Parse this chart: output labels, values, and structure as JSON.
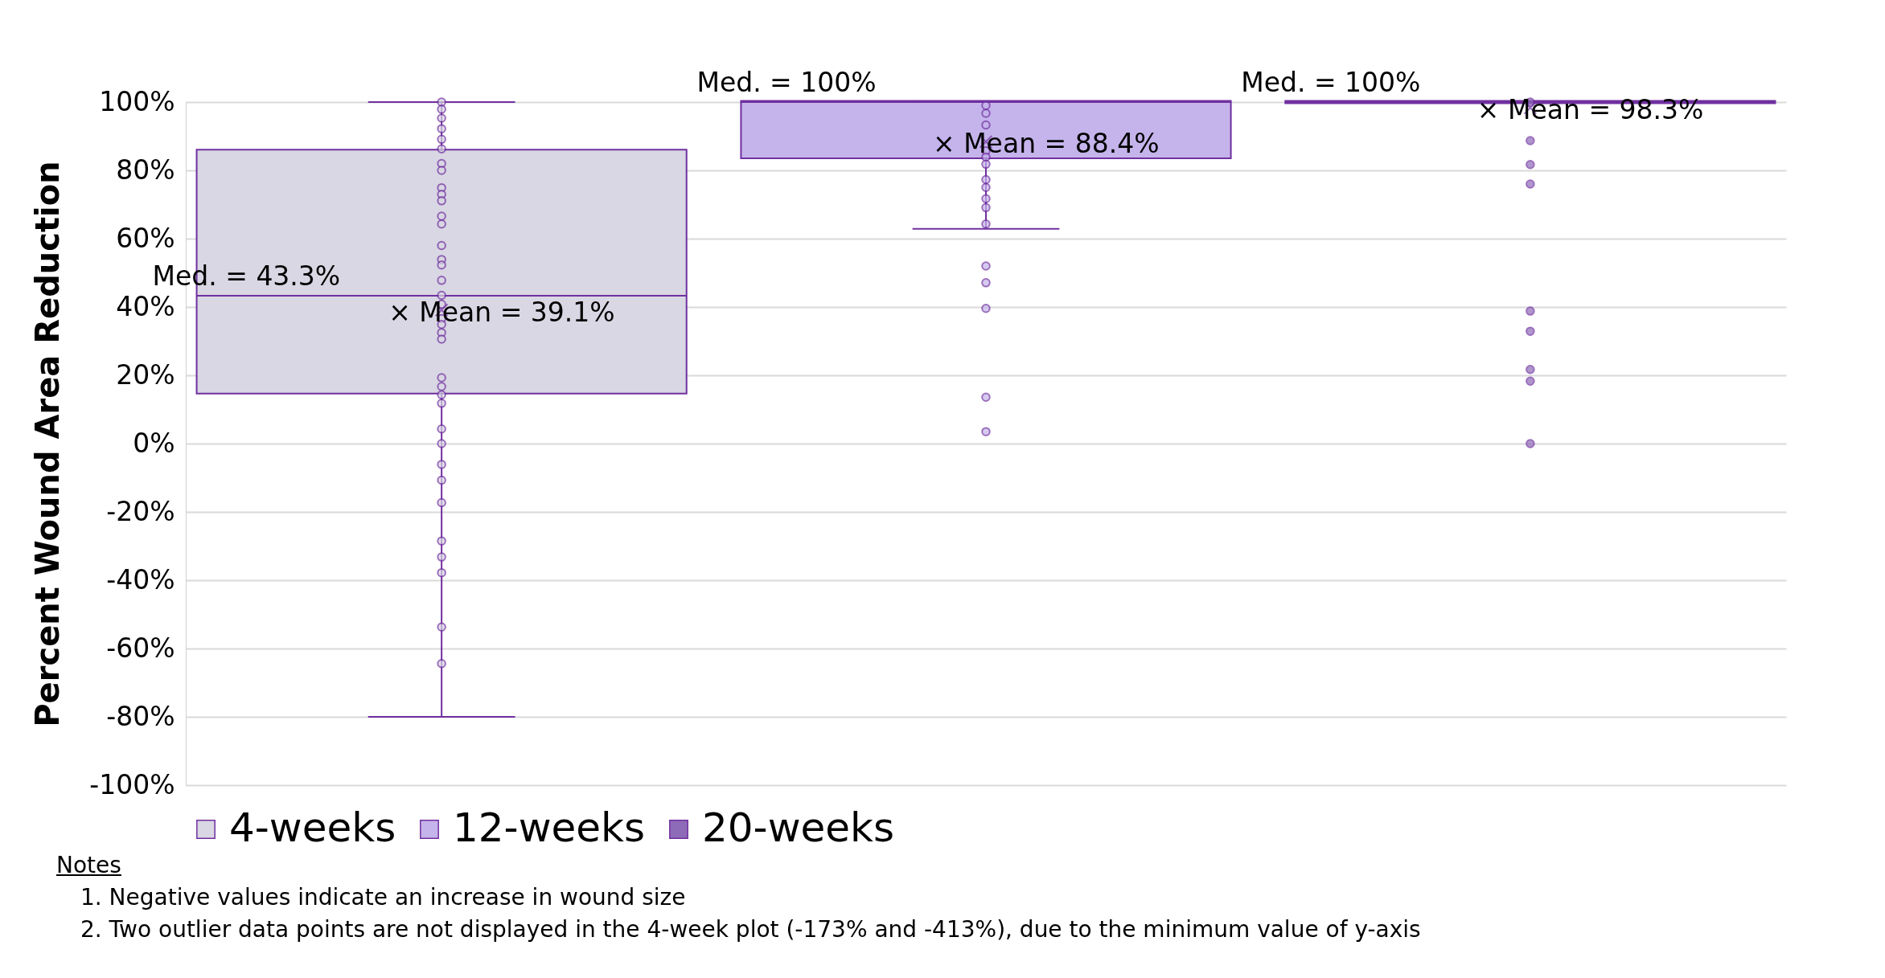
{
  "chart_data": {
    "type": "box",
    "ylabel": "Percent Wound Area Reduction",
    "categories": [
      null
    ],
    "series": [
      {
        "name": "4-weeks",
        "color": "#d9d7e3",
        "boxes": [
          {
            "low": -80,
            "q1": 15,
            "median": 43.3,
            "q3": 85.7,
            "high": 100,
            "mean": 39.1,
            "outliers": [
              100,
              97.9,
              95.3,
              92.2,
              89.1,
              86.3,
              82,
              80,
              74.9,
              73,
              71.1,
              66.6,
              64.3,
              58,
              53.9,
              52.3,
              47.8,
              43.4,
              40.8,
              36.6,
              34.9,
              32.5,
              30.6,
              19.3,
              16.7,
              14.3,
              11.8,
              4.3,
              0,
              -6.1,
              -10.7,
              -17.3,
              -28.5,
              -33.2,
              -37.8,
              -53.7,
              -64.4
            ]
          }
        ]
      },
      {
        "name": "12-weeks",
        "color": "#c5b4eb",
        "boxes": [
          {
            "low": 62.9,
            "q1": 83.9,
            "median": 100,
            "q3": 100,
            "high": 100,
            "mean": 88.4,
            "outliers": [
              99,
              96.7,
              93.3,
              85.7,
              83.9,
              81.8,
              77.3,
              75,
              71.7,
              69.1,
              64.3,
              52,
              47.1,
              39.6,
              13.6,
              3.5
            ]
          }
        ]
      },
      {
        "name": "20-weeks",
        "color": "#8e6bb8",
        "boxes": [
          {
            "low": 100,
            "q1": 100,
            "median": 100,
            "q3": 100,
            "high": 100,
            "mean": 98.3,
            "outliers": [
              100,
              88.7,
              81.7,
              76,
              38.8,
              32.9,
              21.7,
              18.3,
              0
            ]
          }
        ]
      }
    ],
    "ylim": [
      -100,
      100
    ],
    "yticks": [
      {
        "value": -100,
        "label": "-100%"
      },
      {
        "value": -80,
        "label": "-80%"
      },
      {
        "value": -60,
        "label": "-60%"
      },
      {
        "value": -40,
        "label": "-40%"
      },
      {
        "value": -20,
        "label": "-20%"
      },
      {
        "value": 0,
        "label": "0%"
      },
      {
        "value": 20,
        "label": "20%"
      },
      {
        "value": 40,
        "label": "40%"
      },
      {
        "value": 60,
        "label": "60%"
      },
      {
        "value": 80,
        "label": "80%"
      },
      {
        "value": 100,
        "label": "100%"
      }
    ],
    "grid": "y",
    "legend": "bottom",
    "tick_labels": "y",
    "annotations": [
      "Med. = 43.3%",
      "× Mean = 39.1%",
      "Med. = 100%",
      "× Mean = 88.4%",
      "Med. = 100%",
      "× Mean = 98.3%",
      "Notes",
      "1.   Negative values indicate an increase in wound size",
      "2.   Two outlier data points are not displayed in the 4-week plot (-173% and -413%), due to the minimum value of y-axis"
    ]
  }
}
